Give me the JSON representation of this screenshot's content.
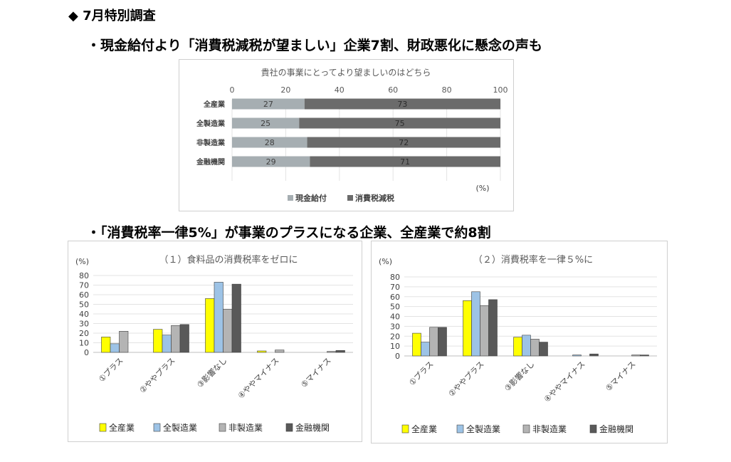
{
  "header": {
    "title": "◆ 7月特別調査",
    "point1": "・現金給付より「消費税減税が望ましい」企業7割、財政悪化に懸念の声も",
    "point2": "・「消費税率一律5%」が事業のプラスになる企業、全産業で約8割"
  },
  "chart_data": [
    {
      "type": "bar",
      "orientation": "horizontal",
      "stacked": true,
      "title": "貴社の事業にとってより望ましいのはどちら",
      "categories": [
        "全産業",
        "全製造業",
        "非製造業",
        "金融機関"
      ],
      "series": [
        {
          "name": "現金給付",
          "values": [
            27,
            25,
            28,
            29
          ],
          "color": "#a6aeb2"
        },
        {
          "name": "消費税減税",
          "values": [
            73,
            75,
            72,
            71
          ],
          "color": "#6b6b6b"
        }
      ],
      "xlim": [
        0,
        100
      ],
      "xticks": [
        "0",
        "20",
        "40",
        "60",
        "80",
        "100"
      ],
      "unit": "(%)",
      "legend": "bottom",
      "grid": true
    },
    {
      "type": "bar",
      "title": "（１）食料品の消費税率をゼロに",
      "ylabel": "(%)",
      "categories": [
        "①プラス",
        "②ややプラス",
        "③影響なし",
        "④ややマイナス",
        "⑤マイナス"
      ],
      "series": [
        {
          "name": "全産業",
          "values": [
            16,
            24,
            56,
            1.5,
            0
          ],
          "color": "#ffff00"
        },
        {
          "name": "全製造業",
          "values": [
            9,
            18,
            73,
            0,
            0
          ],
          "color": "#9dc3e6"
        },
        {
          "name": "非製造業",
          "values": [
            22,
            28,
            45,
            2.5,
            1
          ],
          "color": "#b4b4b4"
        },
        {
          "name": "金融機関",
          "values": [
            0,
            29,
            71,
            0,
            2
          ],
          "color": "#595959"
        }
      ],
      "ylim": [
        0,
        80
      ],
      "yticks": [
        "0",
        "10",
        "20",
        "30",
        "40",
        "50",
        "60",
        "70",
        "80"
      ],
      "legend": "bottom",
      "grid": true
    },
    {
      "type": "bar",
      "title": "（２）消費税率を一律５%に",
      "ylabel": "(%)",
      "categories": [
        "①プラス",
        "②ややプラス",
        "③影響なし",
        "④ややマイナス",
        "⑤マイナス"
      ],
      "series": [
        {
          "name": "全産業",
          "values": [
            23,
            56,
            19,
            0,
            0
          ],
          "color": "#ffff00"
        },
        {
          "name": "全製造業",
          "values": [
            14,
            65,
            21,
            1,
            0
          ],
          "color": "#9dc3e6"
        },
        {
          "name": "非製造業",
          "values": [
            29,
            51,
            17,
            0,
            1
          ],
          "color": "#b4b4b4"
        },
        {
          "name": "金融機関",
          "values": [
            29,
            57,
            14,
            2,
            1
          ],
          "color": "#595959"
        }
      ],
      "ylim": [
        0,
        80
      ],
      "yticks": [
        "0",
        "10",
        "20",
        "30",
        "40",
        "50",
        "60",
        "70",
        "80"
      ],
      "legend": "bottom",
      "grid": true
    }
  ]
}
